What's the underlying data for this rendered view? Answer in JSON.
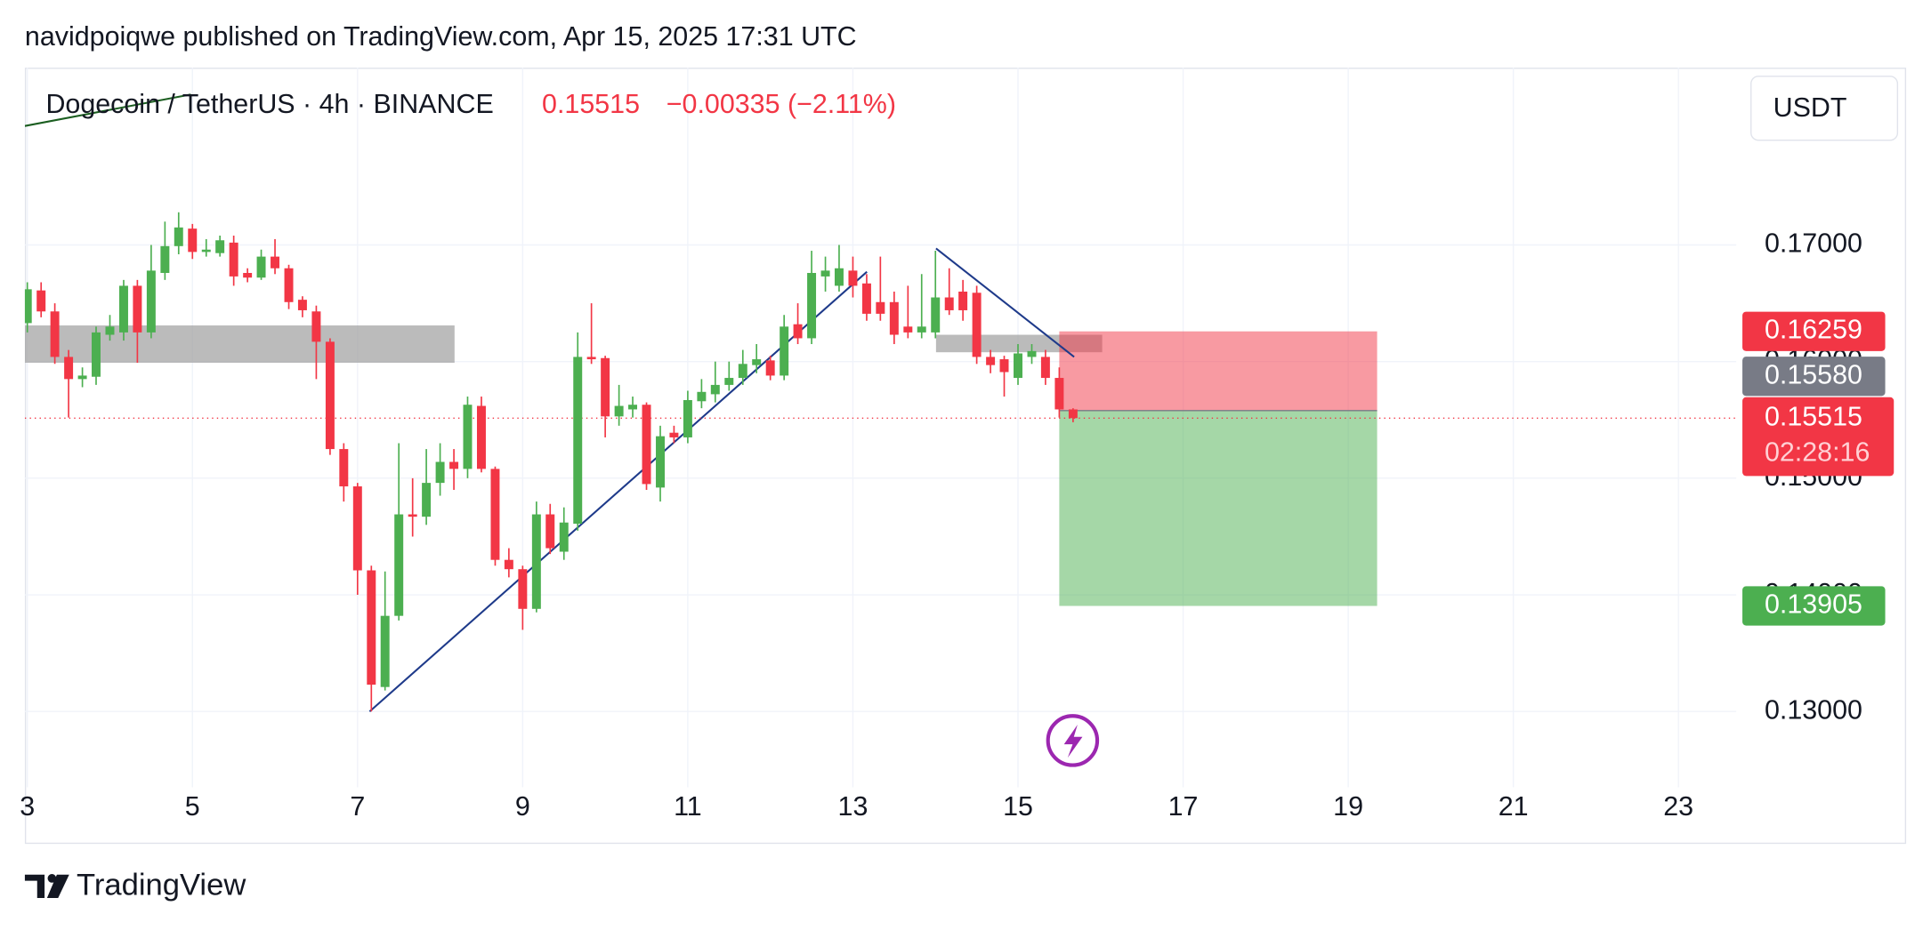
{
  "header": {
    "publisher": "navidpoiqwe published on TradingView.com, Apr 15, 2025 17:31 UTC"
  },
  "chart_data": {
    "type": "candlestick",
    "symbol": "Dogecoin / TetherUS · 4h · BINANCE",
    "last_price": {
      "value": 0.15515,
      "label": "0.15515"
    },
    "change": "−0.00335 (−2.11%)",
    "currency": "USDT",
    "countdown": "02:28:16",
    "up_color": "#4caf50",
    "down_color": "#f23645",
    "grid": true,
    "xlim": [
      2.97,
      23.7
    ],
    "xticks": [
      3,
      5,
      7,
      9,
      11,
      13,
      15,
      17,
      19,
      21,
      23
    ],
    "ylim": [
      0.1235,
      0.1852
    ],
    "yticks": [
      {
        "value": 0.13,
        "label": "0.13000"
      },
      {
        "value": 0.14,
        "label": "0.14000"
      },
      {
        "value": 0.15,
        "label": "0.15000"
      },
      {
        "value": 0.16,
        "label": "0.16000"
      },
      {
        "value": 0.17,
        "label": "0.17000"
      }
    ],
    "x": [
      3,
      3.167,
      3.333,
      3.5,
      3.667,
      3.833,
      4,
      4.167,
      4.333,
      4.5,
      4.667,
      4.833,
      5,
      5.167,
      5.333,
      5.5,
      5.667,
      5.833,
      6,
      6.167,
      6.333,
      6.5,
      6.667,
      6.833,
      7,
      7.167,
      7.333,
      7.5,
      7.667,
      7.833,
      8,
      8.167,
      8.333,
      8.5,
      8.667,
      8.833,
      9,
      9.167,
      9.333,
      9.5,
      9.667,
      9.833,
      10,
      10.167,
      10.333,
      10.5,
      10.667,
      10.833,
      11,
      11.167,
      11.333,
      11.5,
      11.667,
      11.833,
      12,
      12.167,
      12.333,
      12.5,
      12.667,
      12.833,
      13,
      13.167,
      13.333,
      13.5,
      13.667,
      13.833,
      14,
      14.167,
      14.333,
      14.5,
      14.667,
      14.833,
      15,
      15.167,
      15.333,
      15.5,
      15.667
    ],
    "open": [
      0.1633,
      0.1661,
      0.1643,
      0.1604,
      0.1585,
      0.1587,
      0.1623,
      0.1625,
      0.1665,
      0.1625,
      0.1676,
      0.1699,
      0.1714,
      0.1694,
      0.1693,
      0.1702,
      0.1676,
      0.1672,
      0.169,
      0.168,
      0.1653,
      0.1643,
      0.1617,
      0.1525,
      0.1493,
      0.1421,
      0.1321,
      0.1382,
      0.1469,
      0.1467,
      0.1496,
      0.1514,
      0.1508,
      0.1562,
      0.1508,
      0.143,
      0.1422,
      0.1388,
      0.1469,
      0.1437,
      0.1461,
      0.1604,
      0.1603,
      0.1553,
      0.1559,
      0.1563,
      0.1492,
      0.1539,
      0.1535,
      0.1566,
      0.1572,
      0.158,
      0.1586,
      0.1597,
      0.1601,
      0.1588,
      0.1632,
      0.162,
      0.1673,
      0.1665,
      0.1678,
      0.1667,
      0.1651,
      0.1651,
      0.163,
      0.1625,
      0.1625,
      0.1655,
      0.166,
      0.1659,
      0.1604,
      0.1602,
      0.1586,
      0.1604,
      0.1604,
      0.1586,
      0.1559
    ],
    "high": [
      0.1668,
      0.1668,
      0.165,
      0.161,
      0.1595,
      0.163,
      0.164,
      0.167,
      0.167,
      0.17,
      0.172,
      0.1728,
      0.1718,
      0.1705,
      0.1708,
      0.1708,
      0.168,
      0.1696,
      0.1705,
      0.1683,
      0.1656,
      0.1648,
      0.162,
      0.153,
      0.1496,
      0.1425,
      0.142,
      0.153,
      0.15,
      0.1525,
      0.153,
      0.1525,
      0.157,
      0.157,
      0.151,
      0.144,
      0.1425,
      0.148,
      0.1478,
      0.1475,
      0.1625,
      0.165,
      0.1605,
      0.158,
      0.157,
      0.1565,
      0.1545,
      0.1545,
      0.1575,
      0.1585,
      0.16,
      0.16,
      0.161,
      0.1615,
      0.1605,
      0.164,
      0.165,
      0.1695,
      0.169,
      0.17,
      0.169,
      0.1675,
      0.169,
      0.166,
      0.1665,
      0.1675,
      0.1695,
      0.168,
      0.167,
      0.1665,
      0.161,
      0.1605,
      0.1615,
      0.1615,
      0.161,
      0.1595,
      0.156
    ],
    "low": [
      0.1625,
      0.1638,
      0.1598,
      0.1552,
      0.1578,
      0.158,
      0.1618,
      0.1618,
      0.1599,
      0.162,
      0.167,
      0.1692,
      0.1688,
      0.169,
      0.169,
      0.1665,
      0.1668,
      0.167,
      0.1675,
      0.1645,
      0.1638,
      0.1585,
      0.152,
      0.148,
      0.14,
      0.13,
      0.1318,
      0.1378,
      0.145,
      0.146,
      0.1485,
      0.149,
      0.15,
      0.1505,
      0.1425,
      0.1415,
      0.137,
      0.1385,
      0.1435,
      0.143,
      0.1455,
      0.1598,
      0.1535,
      0.1545,
      0.1552,
      0.149,
      0.148,
      0.153,
      0.153,
      0.156,
      0.1565,
      0.1575,
      0.158,
      0.159,
      0.1584,
      0.1584,
      0.1615,
      0.1615,
      0.166,
      0.166,
      0.1655,
      0.1635,
      0.1635,
      0.1615,
      0.162,
      0.162,
      0.162,
      0.164,
      0.1635,
      0.1598,
      0.159,
      0.157,
      0.158,
      0.1598,
      0.158,
      0.1552,
      0.1548
    ],
    "close": [
      0.1662,
      0.1643,
      0.1604,
      0.1585,
      0.1588,
      0.1625,
      0.163,
      0.1665,
      0.1625,
      0.1678,
      0.1699,
      0.1715,
      0.1694,
      0.1696,
      0.1704,
      0.1673,
      0.1672,
      0.169,
      0.168,
      0.1651,
      0.1644,
      0.1617,
      0.1525,
      0.1493,
      0.1421,
      0.1323,
      0.1382,
      0.1469,
      0.1467,
      0.1496,
      0.1514,
      0.1508,
      0.1563,
      0.1508,
      0.143,
      0.1422,
      0.1388,
      0.1469,
      0.144,
      0.1462,
      0.1604,
      0.1602,
      0.1553,
      0.1562,
      0.1563,
      0.1495,
      0.1536,
      0.1535,
      0.1567,
      0.1574,
      0.158,
      0.1586,
      0.1598,
      0.1602,
      0.1588,
      0.163,
      0.162,
      0.1676,
      0.1678,
      0.168,
      0.1665,
      0.1641,
      0.1641,
      0.1623,
      0.1625,
      0.163,
      0.1655,
      0.1644,
      0.1644,
      0.1604,
      0.1597,
      0.1591,
      0.1607,
      0.1609,
      0.1586,
      0.1559,
      0.15515
    ],
    "drawings": {
      "trendlines": [
        {
          "x": [
            7.146,
            13.17
          ],
          "y": [
            0.13,
            0.1677
          ],
          "color": "#1e3a8a"
        },
        {
          "x": [
            14.007,
            15.68
          ],
          "y": [
            0.1697,
            0.1604
          ],
          "color": "#1e3a8a"
        },
        {
          "x": [
            2.97,
            4.98
          ],
          "y": [
            0.1802,
            0.1829
          ],
          "color": "#1b5e20"
        }
      ],
      "zones": [
        {
          "x": [
            2.97,
            8.175
          ],
          "y": [
            0.1599,
            0.1631
          ]
        },
        {
          "x": [
            14.007,
            16.02
          ],
          "y": [
            0.1608,
            0.1623
          ]
        }
      ],
      "position": {
        "x": [
          15.5,
          19.35
        ],
        "entry": {
          "value": 0.1558,
          "label": "0.15580"
        },
        "stop": {
          "value": 0.16259,
          "label": "0.16259"
        },
        "target": {
          "value": 0.13905,
          "label": "0.13905"
        }
      }
    }
  },
  "footer": {
    "brand": "TradingView"
  }
}
